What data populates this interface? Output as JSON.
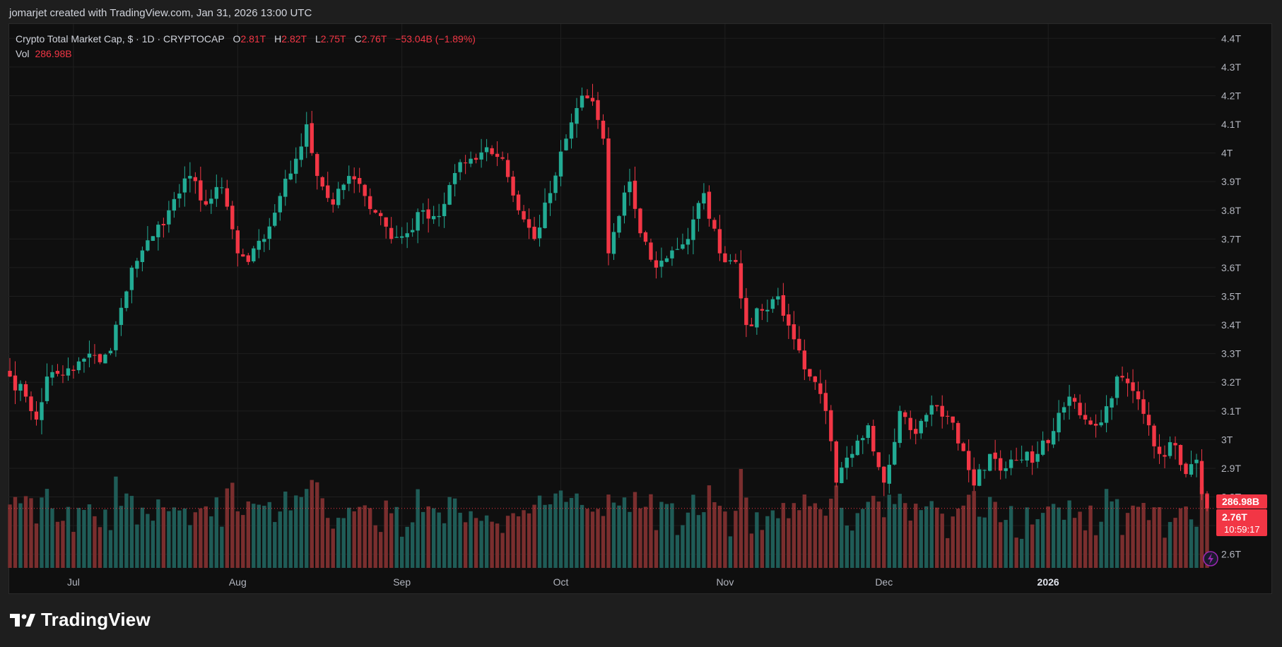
{
  "credit": "jomarjet created with TradingView.com, Jan 31, 2026 13:00 UTC",
  "brand": "TradingView",
  "legend": {
    "symbol": "Crypto Total Market Cap, $ · 1D · CRYPTOCAP",
    "o_label": "O",
    "o_value": "2.81T",
    "h_label": "H",
    "h_value": "2.82T",
    "l_label": "L",
    "l_value": "2.75T",
    "c_label": "C",
    "c_value": "2.76T",
    "change": "−53.04B (−1.89%)",
    "vol_label": "Vol",
    "vol_value": "286.98B"
  },
  "badges": {
    "volume": "286.98B",
    "price": "2.76T",
    "countdown": "10:59:17"
  },
  "colors": {
    "up": "#22ab94",
    "down": "#f23645",
    "up_volume": "#1f5c57",
    "down_volume": "#7a2e2e",
    "background": "#0f0f0f",
    "grid": "#1f1f1f"
  },
  "chart_data": {
    "type": "candlestick",
    "title": "Crypto Total Market Cap, $ · 1D · CRYPTOCAP",
    "y_unit": "T",
    "ylim": [
      2.55,
      4.45
    ],
    "y_ticks": [
      "4.4T",
      "4.3T",
      "4.2T",
      "4.1T",
      "4T",
      "3.9T",
      "3.8T",
      "3.7T",
      "3.6T",
      "3.5T",
      "3.4T",
      "3.3T",
      "3.2T",
      "3.1T",
      "3T",
      "2.9T",
      "2.8T",
      "2.7T",
      "2.6T"
    ],
    "y_tick_values": [
      4.4,
      4.3,
      4.2,
      4.1,
      4.0,
      3.9,
      3.8,
      3.7,
      3.6,
      3.5,
      3.4,
      3.3,
      3.2,
      3.1,
      3.0,
      2.9,
      2.8,
      2.7,
      2.6
    ],
    "x_ticks": [
      {
        "label": "Jul",
        "date": "2025-07-01",
        "bold": false
      },
      {
        "label": "Aug",
        "date": "2025-08-01",
        "bold": false
      },
      {
        "label": "Sep",
        "date": "2025-09-01",
        "bold": false
      },
      {
        "label": "Oct",
        "date": "2025-10-01",
        "bold": false
      },
      {
        "label": "Nov",
        "date": "2025-11-01",
        "bold": false
      },
      {
        "label": "Dec",
        "date": "2025-12-01",
        "bold": false
      },
      {
        "label": "2026",
        "date": "2026-01-01",
        "bold": true
      }
    ],
    "x_range": [
      "2025-06-19",
      "2026-01-31"
    ],
    "close_anchors": [
      [
        "2025-06-19",
        3.22
      ],
      [
        "2025-06-22",
        3.15
      ],
      [
        "2025-06-24",
        3.07
      ],
      [
        "2025-06-26",
        3.22
      ],
      [
        "2025-07-01",
        3.24
      ],
      [
        "2025-07-04",
        3.3
      ],
      [
        "2025-07-06",
        3.27
      ],
      [
        "2025-07-08",
        3.31
      ],
      [
        "2025-07-10",
        3.46
      ],
      [
        "2025-07-12",
        3.6
      ],
      [
        "2025-07-14",
        3.66
      ],
      [
        "2025-07-16",
        3.71
      ],
      [
        "2025-07-19",
        3.8
      ],
      [
        "2025-07-23",
        3.92
      ],
      [
        "2025-07-26",
        3.82
      ],
      [
        "2025-07-29",
        3.88
      ],
      [
        "2025-08-01",
        3.65
      ],
      [
        "2025-08-03",
        3.62
      ],
      [
        "2025-08-06",
        3.7
      ],
      [
        "2025-08-09",
        3.85
      ],
      [
        "2025-08-12",
        3.98
      ],
      [
        "2025-08-14",
        4.1
      ],
      [
        "2025-08-16",
        3.92
      ],
      [
        "2025-08-19",
        3.82
      ],
      [
        "2025-08-22",
        3.92
      ],
      [
        "2025-08-25",
        3.85
      ],
      [
        "2025-08-28",
        3.78
      ],
      [
        "2025-08-30",
        3.7
      ],
      [
        "2025-09-02",
        3.72
      ],
      [
        "2025-09-05",
        3.8
      ],
      [
        "2025-09-08",
        3.78
      ],
      [
        "2025-09-11",
        3.93
      ],
      [
        "2025-09-14",
        3.98
      ],
      [
        "2025-09-17",
        4.02
      ],
      [
        "2025-09-20",
        3.98
      ],
      [
        "2025-09-23",
        3.8
      ],
      [
        "2025-09-26",
        3.7
      ],
      [
        "2025-09-29",
        3.86
      ],
      [
        "2025-10-02",
        4.05
      ],
      [
        "2025-10-05",
        4.2
      ],
      [
        "2025-10-07",
        4.18
      ],
      [
        "2025-10-09",
        4.05
      ],
      [
        "2025-10-10",
        3.65
      ],
      [
        "2025-10-12",
        3.78
      ],
      [
        "2025-10-14",
        3.9
      ],
      [
        "2025-10-16",
        3.72
      ],
      [
        "2025-10-19",
        3.6
      ],
      [
        "2025-10-22",
        3.66
      ],
      [
        "2025-10-25",
        3.7
      ],
      [
        "2025-10-28",
        3.86
      ],
      [
        "2025-10-31",
        3.65
      ],
      [
        "2025-11-03",
        3.62
      ],
      [
        "2025-11-05",
        3.4
      ],
      [
        "2025-11-08",
        3.45
      ],
      [
        "2025-11-11",
        3.5
      ],
      [
        "2025-11-14",
        3.35
      ],
      [
        "2025-11-17",
        3.22
      ],
      [
        "2025-11-20",
        3.1
      ],
      [
        "2025-11-22",
        2.85
      ],
      [
        "2025-11-25",
        2.95
      ],
      [
        "2025-11-28",
        3.05
      ],
      [
        "2025-12-01",
        2.85
      ],
      [
        "2025-12-04",
        3.1
      ],
      [
        "2025-12-07",
        3.02
      ],
      [
        "2025-12-10",
        3.12
      ],
      [
        "2025-12-13",
        3.08
      ],
      [
        "2025-12-16",
        2.96
      ],
      [
        "2025-12-18",
        2.84
      ],
      [
        "2025-12-21",
        2.95
      ],
      [
        "2025-12-24",
        2.9
      ],
      [
        "2025-12-27",
        2.93
      ],
      [
        "2025-12-30",
        2.95
      ],
      [
        "2026-01-02",
        3.03
      ],
      [
        "2026-01-05",
        3.15
      ],
      [
        "2026-01-08",
        3.07
      ],
      [
        "2026-01-11",
        3.06
      ],
      [
        "2026-01-14",
        3.22
      ],
      [
        "2026-01-17",
        3.17
      ],
      [
        "2026-01-20",
        3.05
      ],
      [
        "2026-01-22",
        2.95
      ],
      [
        "2026-01-25",
        2.98
      ],
      [
        "2026-01-27",
        2.88
      ],
      [
        "2026-01-29",
        2.93
      ],
      [
        "2026-01-30",
        2.81
      ],
      [
        "2026-01-31",
        2.76
      ]
    ],
    "last_candle": {
      "date": "2026-01-31",
      "open": 2.81,
      "high": 2.82,
      "low": 2.75,
      "close": 2.76
    },
    "volume_last": "286.98B"
  }
}
